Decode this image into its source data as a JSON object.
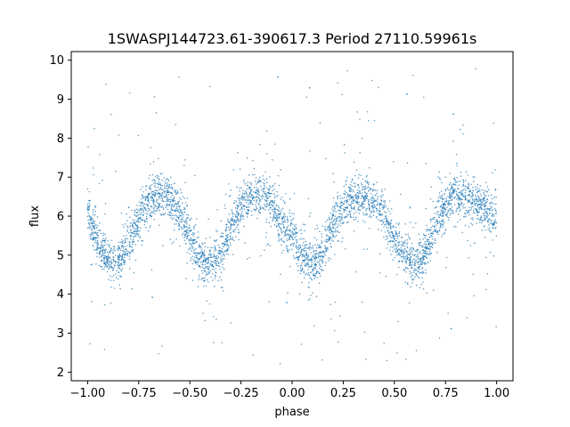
{
  "chart_data": {
    "type": "scatter",
    "title": "1SWASPJ144723.61-390617.3 Period 27110.59961s",
    "xlabel": "phase",
    "ylabel": "flux",
    "xlim": [
      -1.08,
      1.08
    ],
    "ylim": [
      1.78,
      10.22
    ],
    "xticks": [
      -1.0,
      -0.75,
      -0.5,
      -0.25,
      0.0,
      0.25,
      0.5,
      0.75,
      1.0
    ],
    "xtick_labels": [
      "−1.00",
      "−0.75",
      "−0.50",
      "−0.25",
      "0.00",
      "0.25",
      "0.50",
      "0.75",
      "1.00"
    ],
    "yticks": [
      2,
      3,
      4,
      5,
      6,
      7,
      8,
      9,
      10
    ],
    "ytick_labels": [
      "2",
      "3",
      "4",
      "5",
      "6",
      "7",
      "8",
      "9",
      "10"
    ],
    "grid": false,
    "marker_color": "#1f77b4",
    "series": [
      {
        "phase": [
          -1.0,
          -0.95,
          -0.9,
          -0.85,
          -0.8,
          -0.75,
          -0.7,
          -0.65,
          -0.6,
          -0.55,
          -0.5,
          -0.45,
          -0.4,
          -0.35,
          -0.3,
          -0.25,
          -0.2,
          -0.15,
          -0.1,
          -0.05,
          0.0,
          0.05,
          0.1,
          0.15,
          0.2,
          0.25,
          0.3,
          0.35,
          0.4,
          0.45,
          0.5,
          0.55,
          0.6,
          0.65,
          0.7,
          0.75,
          0.8,
          0.85,
          0.9,
          0.95,
          1.0
        ],
        "flux_median": [
          6.1,
          5.3,
          4.9,
          4.85,
          5.3,
          5.95,
          6.4,
          6.55,
          6.45,
          6.1,
          5.45,
          4.9,
          4.75,
          5.0,
          5.7,
          6.25,
          6.5,
          6.55,
          6.35,
          5.85,
          5.4,
          4.9,
          4.75,
          5.05,
          5.75,
          6.3,
          6.5,
          6.55,
          6.4,
          6.0,
          5.4,
          4.95,
          4.75,
          5.05,
          5.75,
          6.3,
          6.55,
          6.5,
          6.3,
          6.15,
          5.95
        ]
      }
    ]
  }
}
